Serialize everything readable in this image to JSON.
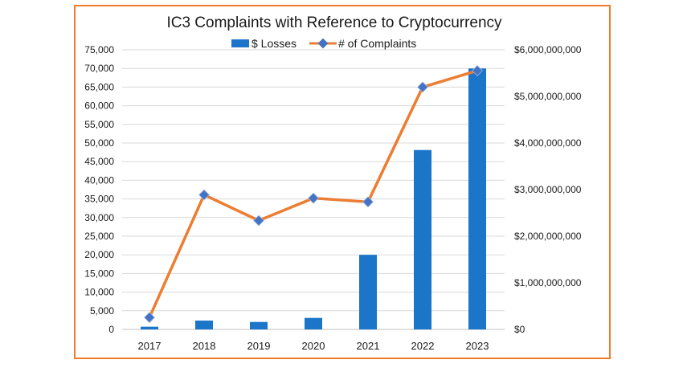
{
  "chart_data": {
    "type": "bar+line",
    "title": "IC3 Complaints with Reference to Cryptocurrency",
    "categories": [
      "2017",
      "2018",
      "2019",
      "2020",
      "2021",
      "2022",
      "2023"
    ],
    "series": [
      {
        "name": "$ Losses",
        "type": "bar",
        "axis": "right",
        "values": [
          58000000,
          190000000,
          160000000,
          247000000,
          1600000000,
          3850000000,
          5600000000
        ],
        "color": "#1B75C9"
      },
      {
        "name": "# of Complaints",
        "type": "line",
        "axis": "left",
        "values": [
          3200,
          36100,
          29200,
          35200,
          34200,
          65000,
          69400
        ],
        "color": "#ED7D31",
        "marker_color": "#4472C4"
      }
    ],
    "left_axis": {
      "ylim": [
        0,
        75000
      ],
      "ticks": [
        "0",
        "5,000",
        "10,000",
        "15,000",
        "20,000",
        "25,000",
        "30,000",
        "35,000",
        "40,000",
        "45,000",
        "50,000",
        "55,000",
        "60,000",
        "65,000",
        "70,000",
        "75,000"
      ]
    },
    "right_axis": {
      "ylim": [
        0,
        6000000000
      ],
      "ticks": [
        "$0",
        "$1,000,000,000",
        "$2,000,000,000",
        "$3,000,000,000",
        "$4,000,000,000",
        "$5,000,000,000",
        "$6,000,000,000"
      ]
    },
    "grid": true,
    "legend_position": "top"
  }
}
